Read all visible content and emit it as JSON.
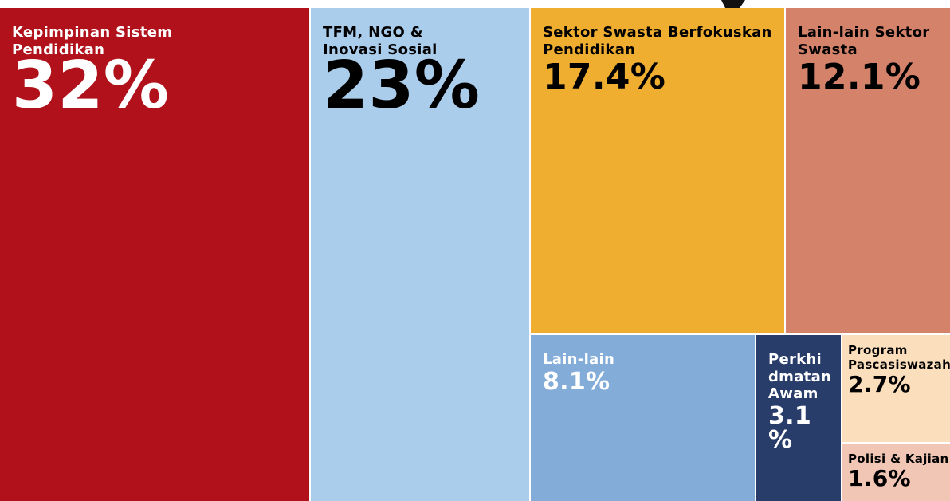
{
  "chart_data": {
    "type": "treemap",
    "categories": [
      "Kepimpinan Sistem Pendidikan",
      "TFM, NGO & Inovasi Sosial",
      "Sektor Swasta Berfokuskan Pendidikan",
      "Lain-lain Sektor Swasta",
      "Lain-lain",
      "Perkhidmatan Awam",
      "Program Pascasiswazah",
      "Polisi & Kajian"
    ],
    "values": [
      32,
      23,
      17.4,
      12.1,
      8.1,
      3.1,
      2.7,
      1.6
    ],
    "value_labels": [
      "32%",
      "23%",
      "17.4%",
      "12.1%",
      "8.1%",
      "3.1%",
      "2.7%",
      "1.6%"
    ],
    "colors": [
      "#b0111a",
      "#abcdec",
      "#f0ae30",
      "#d4826a",
      "#83acd9",
      "#293d6b",
      "#fbdfbd",
      "#f1c6b4"
    ]
  }
}
